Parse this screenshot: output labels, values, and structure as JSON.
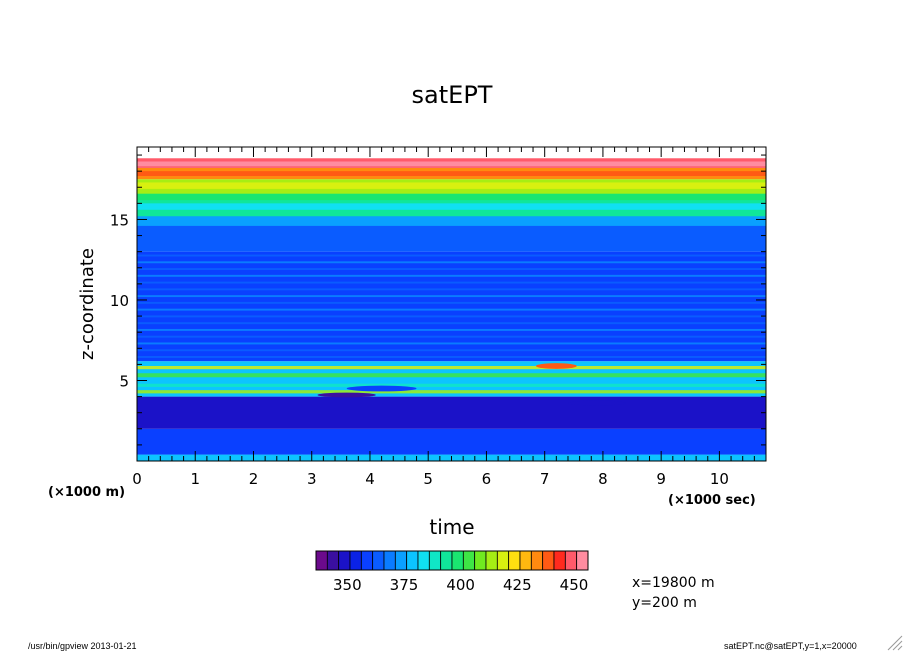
{
  "chart_data": {
    "type": "heatmap",
    "title": "satEPT",
    "xlabel": "time",
    "ylabel": "z-coordinate",
    "x_unit_note": "(×1000 sec)",
    "y_unit_note": "(×1000 m)",
    "xlim": [
      0,
      10.8
    ],
    "ylim": [
      0,
      19.5
    ],
    "x_ticks": [
      0,
      1,
      2,
      3,
      4,
      5,
      6,
      7,
      8,
      9,
      10
    ],
    "x_tick_labels": [
      "0",
      "1",
      "2",
      "3",
      "4",
      "5",
      "6",
      "7",
      "8",
      "9",
      "10"
    ],
    "y_ticks": [
      5,
      10,
      15
    ],
    "y_tick_labels": [
      "5",
      "10",
      "15"
    ],
    "colorbar": {
      "min": 330,
      "max": 450,
      "step": 5,
      "tick_values": [
        350,
        375,
        400,
        425,
        450
      ],
      "tick_labels": [
        "350",
        "375",
        "400",
        "425",
        "450"
      ],
      "colors": [
        "#6b0a8c",
        "#3a0fa0",
        "#1b12c8",
        "#0a22e6",
        "#0a40ff",
        "#0a5cff",
        "#0a7cff",
        "#0aa0ff",
        "#0cc4ff",
        "#10e0f2",
        "#10e6c6",
        "#10e69a",
        "#1ae670",
        "#3ee645",
        "#70ea20",
        "#a6ee14",
        "#d8f010",
        "#ffe010",
        "#ffb810",
        "#ff8a10",
        "#ff5a14",
        "#ff2a1e",
        "#ff5a6a",
        "#ff8ca0"
      ]
    },
    "field_description_bands_z_km": [
      {
        "z0": 0.0,
        "z1": 0.4,
        "value": 372
      },
      {
        "z0": 0.4,
        "z1": 2.0,
        "value": 352
      },
      {
        "z0": 2.0,
        "z1": 4.0,
        "value": 342
      },
      {
        "z0": 4.0,
        "z1": 6.2,
        "value": 372
      },
      {
        "z0": 6.2,
        "z1": 13.0,
        "value": 350
      },
      {
        "z0": 13.0,
        "z1": 15.0,
        "value": 358
      },
      {
        "z0": 15.0,
        "z1": 16.5,
        "value": 385
      },
      {
        "z0": 16.5,
        "z1": 17.5,
        "value": 405
      },
      {
        "z0": 17.5,
        "z1": 18.2,
        "value": 425
      },
      {
        "z0": 18.2,
        "z1": 18.8,
        "value": 442
      }
    ]
  },
  "annotations": {
    "x_value": "x=19800 m",
    "y_value": "y=200 m"
  },
  "footer": {
    "left": "/usr/bin/gpview  2013-01-21",
    "right": "satEPT.nc@satEPT,y=1,x=20000"
  }
}
